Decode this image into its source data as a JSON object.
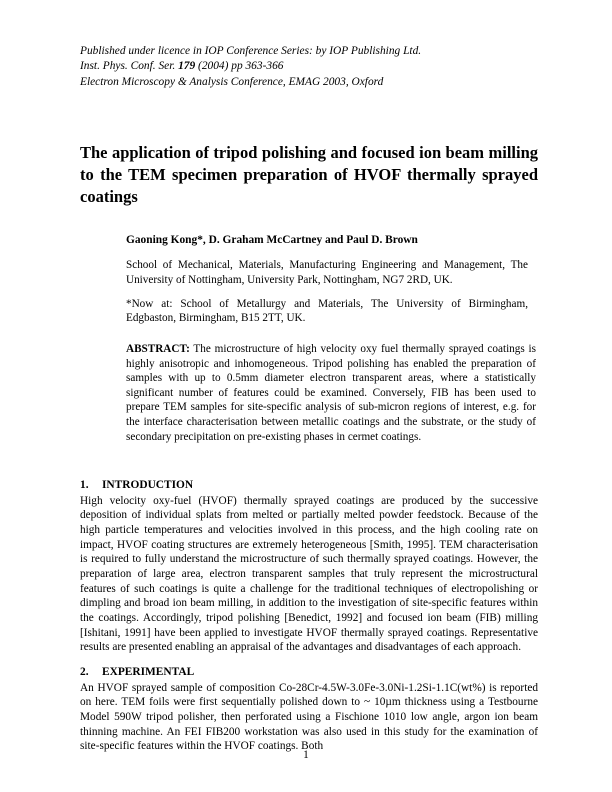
{
  "header": {
    "line1": "Published under licence in IOP Conference Series: by IOP Publishing Ltd.",
    "line2": "Inst. Phys. Conf. Ser. 179 (2004) pp 363-366",
    "line3": "Electron Microscopy & Analysis Conference, EMAG 2003, Oxford"
  },
  "title": "The application of tripod polishing and focused ion beam milling to the TEM specimen preparation of HVOF thermally sprayed coatings",
  "authors": "Gaoning Kong*, D. Graham McCartney and Paul D. Brown",
  "affiliation1": "School of Mechanical, Materials, Manufacturing Engineering and Management, The University of Nottingham, University Park, Nottingham, NG7 2RD, UK.",
  "affiliation2": "*Now at: School of Metallurgy and Materials, The University of Birmingham, Edgbaston, Birmingham, B15 2TT, UK.",
  "abstract": {
    "label": "ABSTRACT:",
    "text": " The microstructure of high velocity oxy fuel thermally sprayed coatings is highly anisotropic and inhomogeneous. Tripod polishing has enabled the preparation of samples with up to 0.5mm diameter electron transparent areas, where a statistically significant number of features could be examined. Conversely, FIB has been used to prepare TEM samples for site-specific analysis of sub-micron regions of interest, e.g. for the interface characterisation between metallic coatings and the substrate, or the study of secondary precipitation on pre-existing phases in cermet coatings."
  },
  "sections": {
    "intro": {
      "num": "1.",
      "head": "INTRODUCTION",
      "body": "High velocity oxy-fuel (HVOF) thermally sprayed coatings are produced by the successive deposition of individual splats from melted or partially melted powder feedstock. Because of the high particle temperatures and velocities involved in this process, and the high cooling rate on impact, HVOF coating structures are extremely heterogeneous [Smith, 1995]. TEM characterisation is required to fully understand the microstructure of such thermally sprayed coatings. However, the preparation of large area, electron transparent samples that truly represent the microstructural features of such coatings is quite a challenge for the traditional techniques of electropolishing or dimpling and broad ion beam milling, in addition to the investigation of site-specific features within the coatings. Accordingly, tripod polishing [Benedict, 1992] and focused ion beam (FIB) milling [Ishitani, 1991] have been applied to investigate HVOF thermally sprayed coatings. Representative results are presented enabling an appraisal of the advantages and disadvantages of each approach."
    },
    "exp": {
      "num": "2.",
      "head": "EXPERIMENTAL",
      "body": "An HVOF sprayed sample of composition Co-28Cr-4.5W-3.0Fe-3.0Ni-1.2Si-1.1C(wt%) is reported on here. TEM foils were first sequentially polished down to ~ 10µm thickness using a Testbourne Model 590W tripod polisher, then perforated using a Fischione 1010 low angle, argon ion beam thinning machine. An FEI FIB200 workstation was also used in this study for the examination of site-specific features within the HVOF coatings. Both"
    }
  },
  "page_number": "1"
}
